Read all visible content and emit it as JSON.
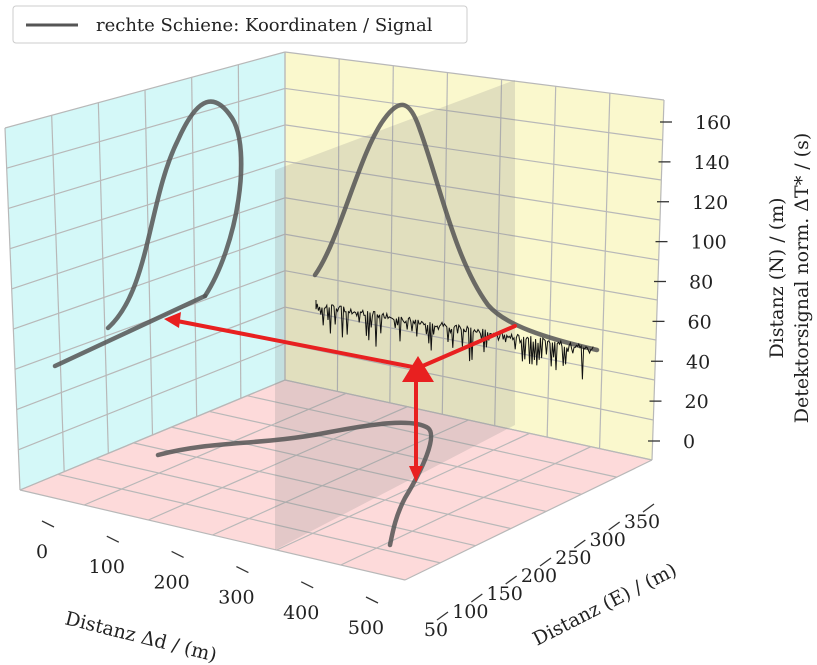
{
  "chart_data": {
    "type": "line",
    "projection": "3d",
    "legend": {
      "placement": "top-left",
      "entries": [
        {
          "label": "rechte Schiene: Koordinaten / Signal",
          "color": "#555555"
        }
      ]
    },
    "x_axis": {
      "label": "Distanz Δd / (m)",
      "ticks": [
        "0",
        "100",
        "200",
        "300",
        "400",
        "500"
      ]
    },
    "y_axis": {
      "label": "Distanz (E) / (m)",
      "ticks": [
        "50",
        "100",
        "150",
        "200",
        "250",
        "300",
        "350"
      ]
    },
    "z_axis": {
      "label_line1": "Distanz (N) / (m)",
      "label_line2": "Detektorsignal norm. ΔT* / (s)",
      "ticks": [
        "0",
        "20",
        "40",
        "60",
        "80",
        "100",
        "120",
        "140",
        "160"
      ]
    },
    "colors": {
      "left_pane": "#ccf7f7",
      "back_pane": "#f9f7c8",
      "floor_pane": "#fdd6d6",
      "curve": "#555555",
      "marker": "#e82020",
      "grid": "#b8b8b8"
    }
  }
}
